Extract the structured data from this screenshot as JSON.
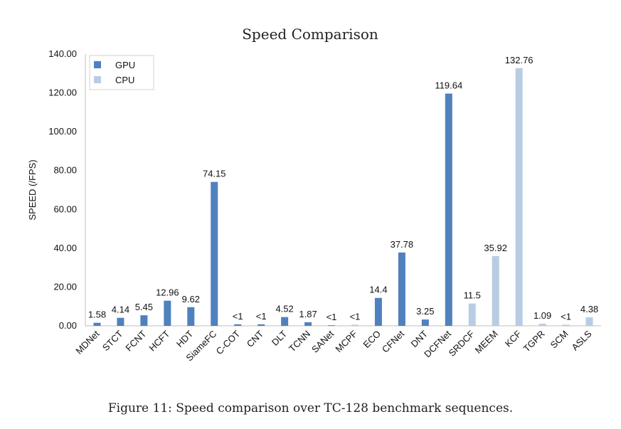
{
  "chart_data": {
    "type": "bar",
    "title": "Speed Comparison",
    "xlabel": "",
    "ylabel": "SPEED (/FPS)",
    "ylim": [
      0,
      140
    ],
    "yticks": [
      "0.00",
      "20.00",
      "40.00",
      "60.00",
      "80.00",
      "100.00",
      "120.00",
      "140.00"
    ],
    "grid": false,
    "legend_position": "top-left",
    "categories": [
      "MDNet",
      "STCT",
      "FCNT",
      "HCFT",
      "HDT",
      "SiameFC",
      "C-COT",
      "CNT",
      "DLT",
      "TCNN",
      "SANet",
      "MCPF",
      "ECO",
      "CFNet",
      "DNT",
      "DCFNet",
      "SRDCF",
      "MEEM",
      "KCF",
      "TGPR",
      "SCM",
      "ASLS"
    ],
    "series": [
      {
        "name": "GPU",
        "color": "#4f81bd",
        "values": [
          1.58,
          4.14,
          5.45,
          12.96,
          9.62,
          74.15,
          0.8,
          0.8,
          4.52,
          1.87,
          0.3,
          null,
          14.4,
          37.78,
          3.25,
          119.64,
          null,
          null,
          null,
          null,
          null,
          null
        ]
      },
      {
        "name": "CPU",
        "color": "#b8cce4",
        "values": [
          null,
          null,
          null,
          null,
          null,
          null,
          null,
          null,
          null,
          null,
          null,
          0.6,
          null,
          null,
          null,
          null,
          11.5,
          35.92,
          132.76,
          1.09,
          0.6,
          4.38
        ]
      }
    ],
    "data_labels": [
      "1.58",
      "4.14",
      "5.45",
      "12.96",
      "9.62",
      "74.15",
      "<1",
      "<1",
      "4.52",
      "1.87",
      "<1",
      "<1",
      "14.4",
      "37.78",
      "3.25",
      "119.64",
      "11.5",
      "35.92",
      "132.76",
      "1.09",
      "<1",
      "4.38"
    ]
  },
  "caption": "Figure 11: Speed comparison over TC-128 benchmark sequences."
}
